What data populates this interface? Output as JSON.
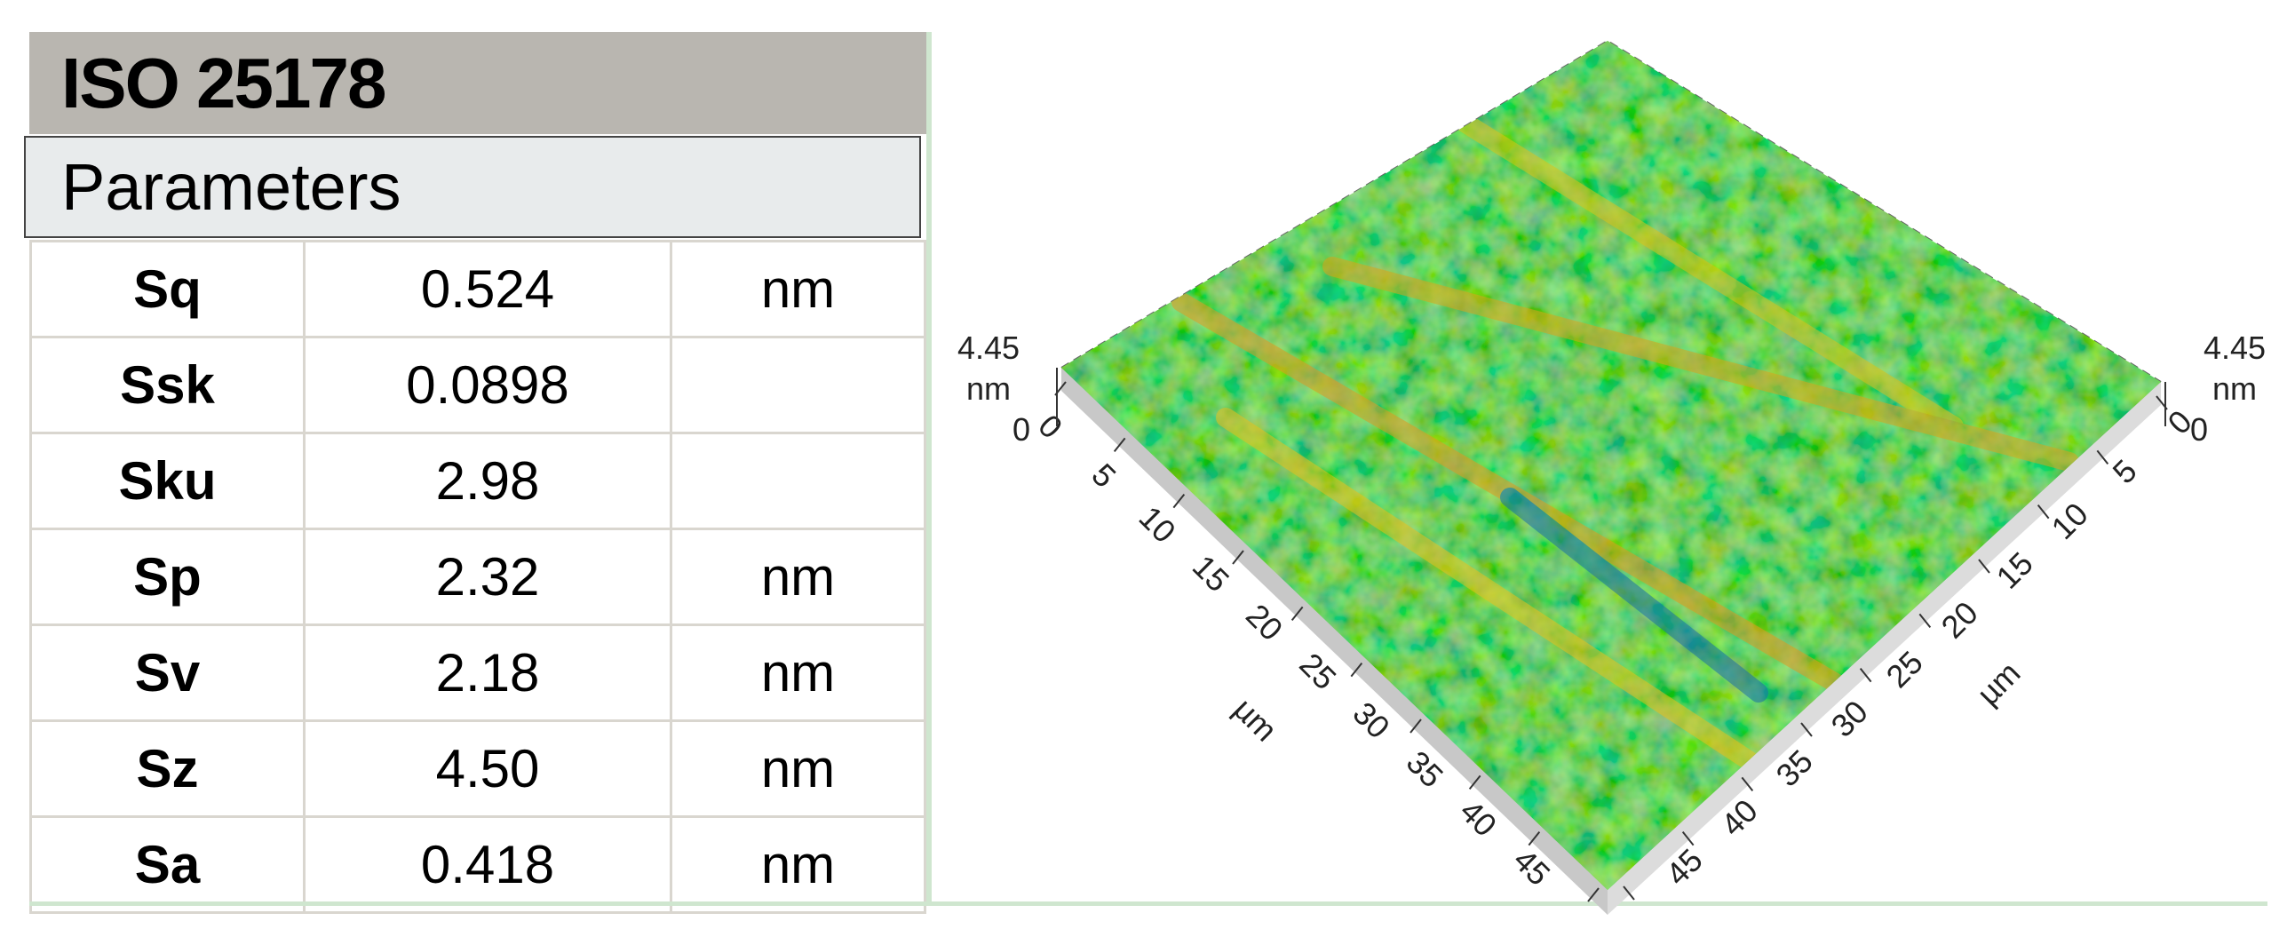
{
  "header": {
    "title": "ISO 25178",
    "subtitle": "Parameters"
  },
  "table": {
    "rows": [
      [
        "Sq",
        "0.524",
        "nm"
      ],
      [
        "Ssk",
        "0.0898",
        ""
      ],
      [
        "Sku",
        "2.98",
        ""
      ],
      [
        "Sp",
        "2.32",
        "nm"
      ],
      [
        "Sv",
        "2.18",
        "nm"
      ],
      [
        "Sz",
        "4.50",
        "nm"
      ],
      [
        "Sa",
        "0.418",
        "nm"
      ]
    ]
  },
  "plot": {
    "z_max": "4.45",
    "z_unit": "nm",
    "z_min": "0",
    "axis_unit": "µm",
    "x_ticks": [
      "0",
      "5",
      "10",
      "15",
      "20",
      "25",
      "30",
      "35",
      "40",
      "45"
    ],
    "y_ticks": [
      "0",
      "5",
      "10",
      "15",
      "20",
      "25",
      "30",
      "35",
      "40",
      "45"
    ]
  }
}
